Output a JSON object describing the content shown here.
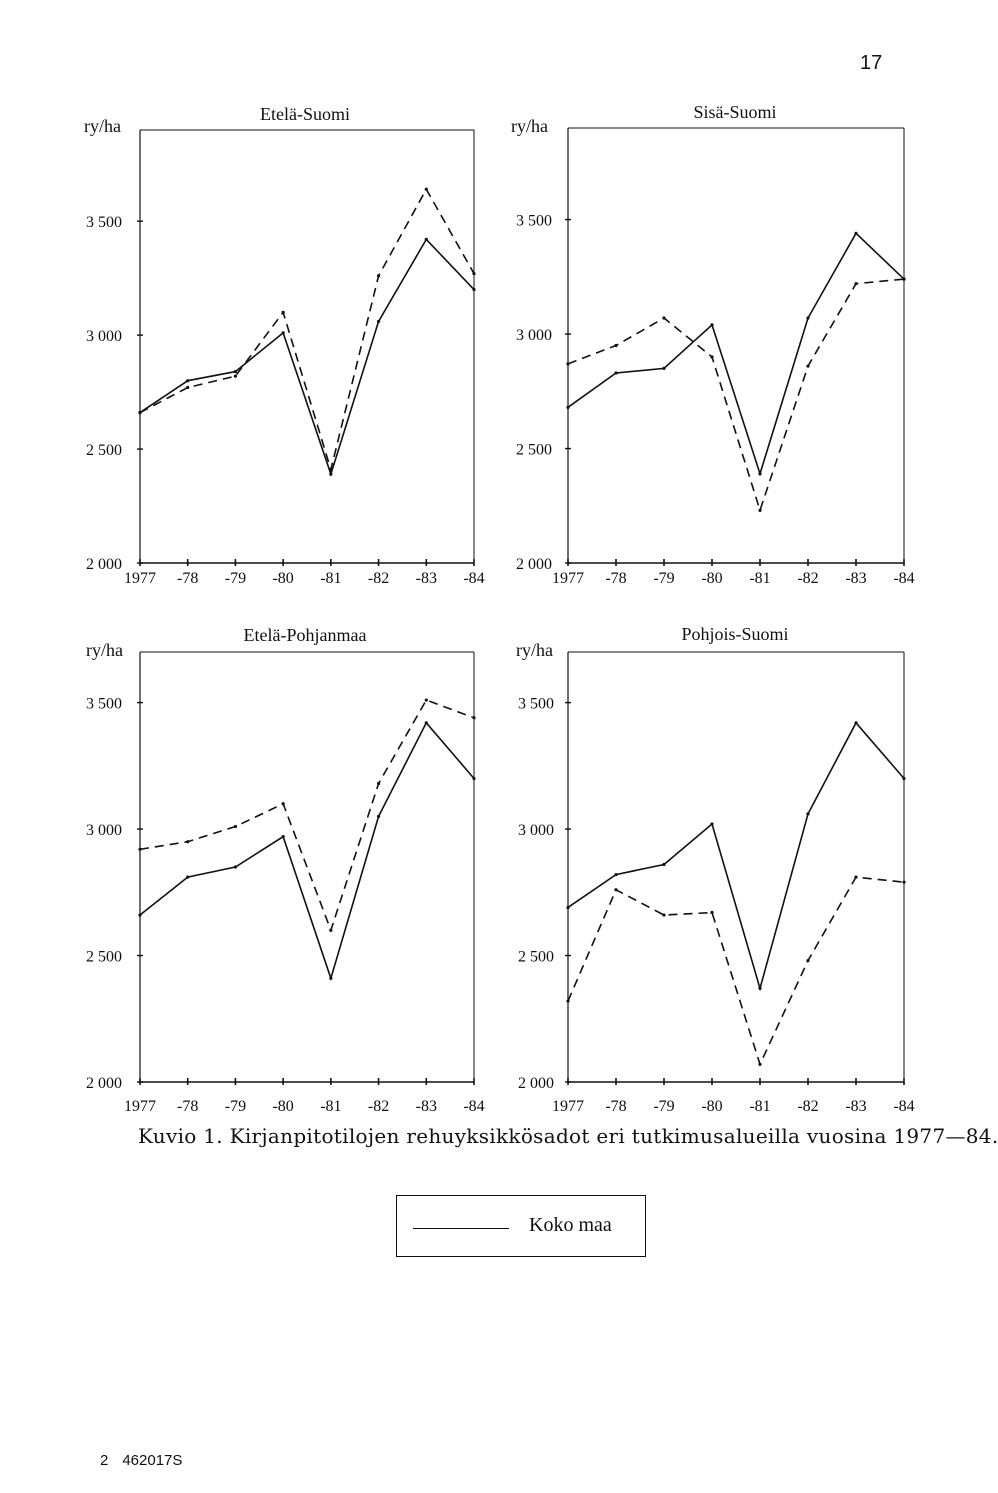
{
  "page": {
    "number": "17",
    "caption": "Kuvio 1. Kirjanpitotilojen rehuyksikkösadot eri tutkimusalueilla vuosina 1977—84.",
    "footer_left": "2",
    "footer_right": "462017S"
  },
  "legend": {
    "label": "Koko maa",
    "line_style": "solid"
  },
  "colors": {
    "ink": "#111111",
    "background": "#ffffff"
  },
  "chart_data": [
    {
      "type": "line",
      "title": "Etelä-Suomi",
      "ylabel": "ry/ha",
      "categories": [
        "1977",
        "-78",
        "-79",
        "-80",
        "-81",
        "-82",
        "-83",
        "-84"
      ],
      "yticks": [
        "2 000",
        "2 500",
        "3 000",
        "3 500"
      ],
      "ylim": [
        2000,
        3900
      ],
      "series": [
        {
          "name": "Koko maa",
          "style": "solid",
          "values": [
            2660,
            2800,
            2840,
            3010,
            2390,
            3060,
            3420,
            3200
          ]
        },
        {
          "style": "dashed",
          "values": [
            2660,
            2770,
            2820,
            3100,
            2410,
            3260,
            3640,
            3270
          ]
        }
      ]
    },
    {
      "type": "line",
      "title": "Sisä-Suomi",
      "ylabel": "ry/ha",
      "categories": [
        "1977",
        "-78",
        "-79",
        "-80",
        "-81",
        "-82",
        "-83",
        "-84"
      ],
      "yticks": [
        "2 000",
        "2 500",
        "3 000",
        "3 500"
      ],
      "ylim": [
        2000,
        3900
      ],
      "series": [
        {
          "name": "Koko maa",
          "style": "solid",
          "values": [
            2680,
            2830,
            2850,
            3040,
            2390,
            3070,
            3440,
            3240
          ]
        },
        {
          "style": "dashed",
          "values": [
            2870,
            2950,
            3070,
            2900,
            2230,
            2860,
            3220,
            3240
          ]
        }
      ]
    },
    {
      "type": "line",
      "title": "Etelä-Pohjanmaa",
      "ylabel": "ry/ha",
      "categories": [
        "1977",
        "-78",
        "-79",
        "-80",
        "-81",
        "-82",
        "-83",
        "-84"
      ],
      "yticks": [
        "2 000",
        "2 500",
        "3 000",
        "3 500"
      ],
      "ylim": [
        2000,
        3700
      ],
      "series": [
        {
          "name": "Koko maa",
          "style": "solid",
          "values": [
            2660,
            2810,
            2850,
            2970,
            2410,
            3050,
            3420,
            3200
          ]
        },
        {
          "style": "dashed",
          "values": [
            2920,
            2950,
            3010,
            3100,
            2600,
            3180,
            3510,
            3440
          ]
        }
      ]
    },
    {
      "type": "line",
      "title": "Pohjois-Suomi",
      "ylabel": "ry/ha",
      "categories": [
        "1977",
        "-78",
        "-79",
        "-80",
        "-81",
        "-82",
        "-83",
        "-84"
      ],
      "yticks": [
        "2 000",
        "2 500",
        "3 000",
        "3 500"
      ],
      "ylim": [
        2000,
        3700
      ],
      "series": [
        {
          "name": "Koko maa",
          "style": "solid",
          "values": [
            2690,
            2820,
            2860,
            3020,
            2370,
            3060,
            3420,
            3200
          ]
        },
        {
          "style": "dashed",
          "values": [
            2320,
            2760,
            2660,
            2670,
            2070,
            2480,
            2810,
            2790
          ]
        }
      ]
    }
  ]
}
